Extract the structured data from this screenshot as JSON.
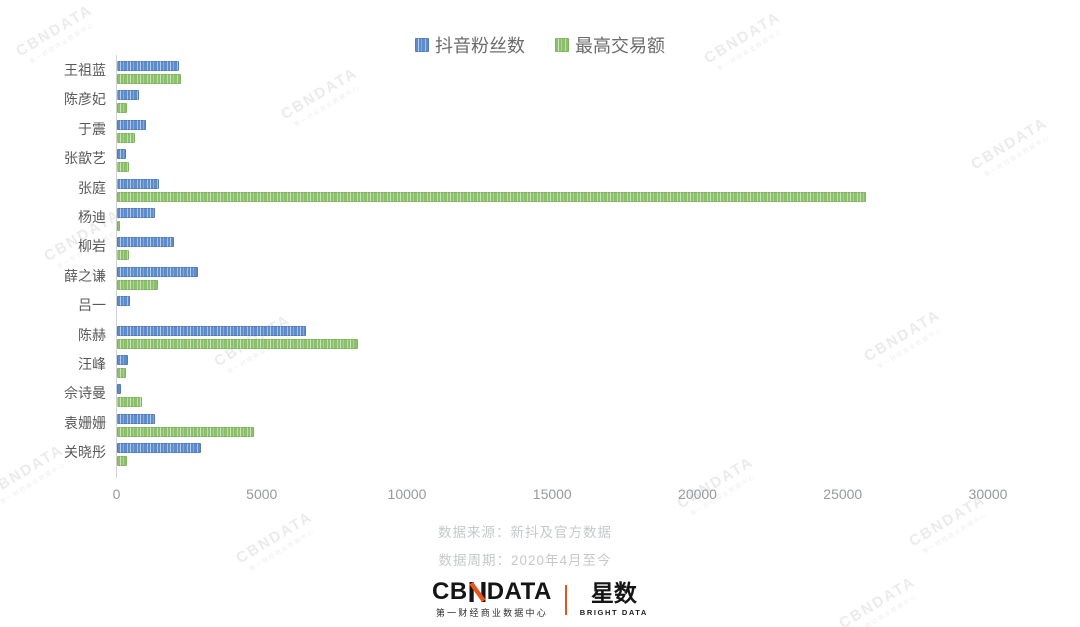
{
  "chart_data": {
    "type": "bar",
    "orientation": "horizontal",
    "title": "",
    "categories": [
      "王祖蓝",
      "陈彦妃",
      "于震",
      "张歆艺",
      "张庭",
      "杨迪",
      "柳岩",
      "薛之谦",
      "吕一",
      "陈赫",
      "汪峰",
      "佘诗曼",
      "袁姗姗",
      "关晓彤"
    ],
    "series": [
      {
        "name": "抖音粉丝数",
        "color": "#5e8bc9",
        "values": [
          2150,
          750,
          1000,
          310,
          1450,
          1300,
          1950,
          2800,
          450,
          6500,
          370,
          150,
          1300,
          2900
        ]
      },
      {
        "name": "最高交易额",
        "color": "#8cc06c",
        "values": [
          2200,
          330,
          610,
          400,
          25800,
          120,
          420,
          1400,
          0,
          8300,
          300,
          850,
          4700,
          350
        ]
      }
    ],
    "xlim": [
      0,
      30000
    ],
    "xticks": [
      0,
      5000,
      10000,
      15000,
      20000,
      25000,
      30000
    ],
    "grid": false,
    "legend_position": "top"
  },
  "footer": {
    "source": "数据来源：新抖及官方数据",
    "period": "数据周期：2020年4月至今"
  },
  "logo": {
    "cbn_prefix": "CB",
    "cbn_n": "N",
    "cbn_suffix": "DATA",
    "cbn_subtitle": "第一财经商业数据中心",
    "star": "星数",
    "star_subtitle": "BRIGHT DATA",
    "accent_color": "#e8541e"
  },
  "watermark": {
    "text": "CBNDATA",
    "subtext": "第一财经商业数据中心"
  }
}
